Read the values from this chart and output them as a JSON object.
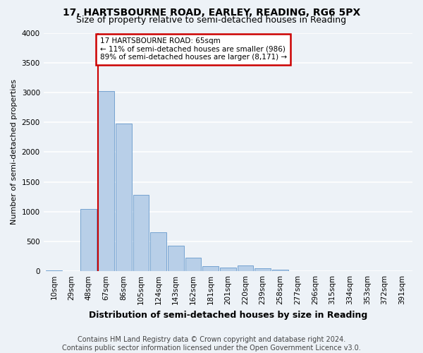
{
  "title": "17, HARTSBOURNE ROAD, EARLEY, READING, RG6 5PX",
  "subtitle": "Size of property relative to semi-detached houses in Reading",
  "xlabel": "Distribution of semi-detached houses by size in Reading",
  "ylabel": "Number of semi-detached properties",
  "bin_labels": [
    "10sqm",
    "29sqm",
    "48sqm",
    "67sqm",
    "86sqm",
    "105sqm",
    "124sqm",
    "143sqm",
    "162sqm",
    "181sqm",
    "201sqm",
    "220sqm",
    "239sqm",
    "258sqm",
    "277sqm",
    "296sqm",
    "315sqm",
    "334sqm",
    "353sqm",
    "372sqm",
    "391sqm"
  ],
  "bar_values": [
    15,
    5,
    1050,
    3020,
    2480,
    1280,
    650,
    430,
    230,
    80,
    60,
    100,
    55,
    20,
    8,
    5,
    2,
    0,
    0,
    0,
    0
  ],
  "bar_color": "#b8cfe8",
  "bar_edge_color": "#6699cc",
  "property_sqm": 65,
  "pct_smaller": 11,
  "pct_larger": 89,
  "n_smaller": 986,
  "n_larger": 8171,
  "annotation_box_color": "#ffffff",
  "annotation_box_edge_color": "#cc0000",
  "property_line_color": "#cc0000",
  "background_color": "#edf2f7",
  "plot_bg_color": "#edf2f7",
  "grid_color": "#ffffff",
  "footer_text": "Contains HM Land Registry data © Crown copyright and database right 2024.\nContains public sector information licensed under the Open Government Licence v3.0.",
  "ylim": [
    0,
    4000
  ],
  "title_fontsize": 10,
  "subtitle_fontsize": 9,
  "xlabel_fontsize": 9,
  "ylabel_fontsize": 8,
  "tick_fontsize": 7.5,
  "footer_fontsize": 7
}
